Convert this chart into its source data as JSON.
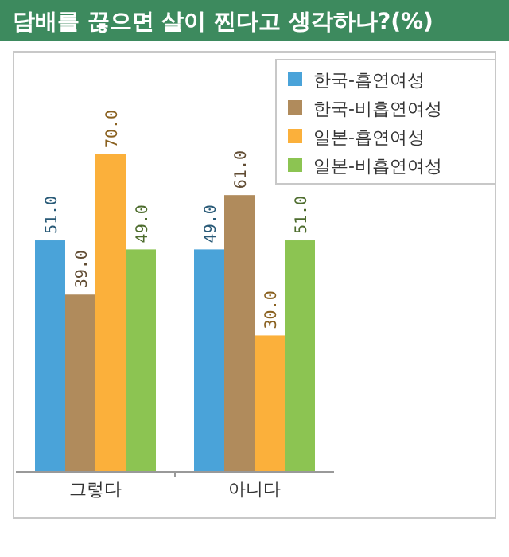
{
  "chart_data": {
    "type": "bar",
    "title": "담배를 끊으면 살이 찐다고 생각하나?(%)",
    "categories": [
      "그렇다",
      "아니다"
    ],
    "series": [
      {
        "name": "한국-흡연여성",
        "color": "#4aa3d9",
        "values": [
          51.0,
          49.0
        ],
        "value_labels": [
          "51.0",
          "49.0"
        ]
      },
      {
        "name": "한국-비흡연여성",
        "color": "#b08b5c",
        "values": [
          39.0,
          61.0
        ],
        "value_labels": [
          "39.0",
          "61.0"
        ]
      },
      {
        "name": "일본-흡연여성",
        "color": "#fbb03b",
        "values": [
          70.0,
          30.0
        ],
        "value_labels": [
          "70.0",
          "30.0"
        ]
      },
      {
        "name": "일본-비흡연여성",
        "color": "#8cc452",
        "values": [
          49.0,
          51.0
        ],
        "value_labels": [
          "49.0",
          "51.0"
        ]
      }
    ],
    "legend": "top right",
    "grid": false
  }
}
